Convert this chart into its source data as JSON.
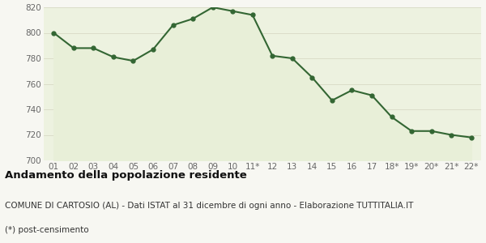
{
  "x_labels": [
    "01",
    "02",
    "03",
    "04",
    "05",
    "06",
    "07",
    "08",
    "09",
    "10",
    "11*",
    "12",
    "13",
    "14",
    "15",
    "16",
    "17",
    "18*",
    "19*",
    "20*",
    "21*",
    "22*"
  ],
  "y_values": [
    800,
    788,
    788,
    781,
    778,
    787,
    806,
    811,
    820,
    817,
    814,
    782,
    780,
    765,
    747,
    755,
    751,
    734,
    723,
    723,
    720,
    718
  ],
  "line_color": "#336633",
  "fill_color": "#e8efd8",
  "marker": "o",
  "marker_size": 3.5,
  "linewidth": 1.5,
  "ylim": [
    700,
    820
  ],
  "yticks": [
    700,
    720,
    740,
    760,
    780,
    800,
    820
  ],
  "title": "Andamento della popolazione residente",
  "subtitle": "COMUNE DI CARTOSIO (AL) - Dati ISTAT al 31 dicembre di ogni anno - Elaborazione TUTTITALIA.IT",
  "footnote": "(*) post-censimento",
  "title_fontsize": 9.5,
  "subtitle_fontsize": 7.5,
  "footnote_fontsize": 7.5,
  "tick_fontsize": 7.5,
  "background_color": "#f7f7f2",
  "plot_bg_color": "#edf2e0",
  "grid_color": "#d4d4c0"
}
